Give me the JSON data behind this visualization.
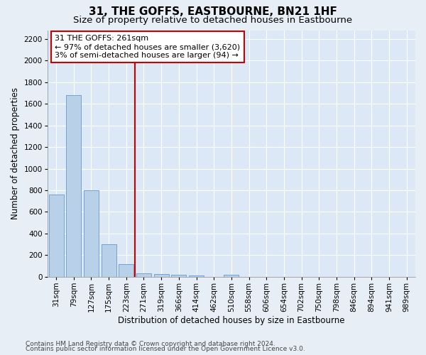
{
  "title": "31, THE GOFFS, EASTBOURNE, BN21 1HF",
  "subtitle": "Size of property relative to detached houses in Eastbourne",
  "xlabel": "Distribution of detached houses by size in Eastbourne",
  "ylabel": "Number of detached properties",
  "footnote1": "Contains HM Land Registry data © Crown copyright and database right 2024.",
  "footnote2": "Contains public sector information licensed under the Open Government Licence v3.0.",
  "bar_labels": [
    "31sqm",
    "79sqm",
    "127sqm",
    "175sqm",
    "223sqm",
    "271sqm",
    "319sqm",
    "366sqm",
    "414sqm",
    "462sqm",
    "510sqm",
    "558sqm",
    "606sqm",
    "654sqm",
    "702sqm",
    "750sqm",
    "798sqm",
    "846sqm",
    "894sqm",
    "941sqm",
    "989sqm"
  ],
  "bar_values": [
    760,
    1680,
    800,
    300,
    115,
    35,
    25,
    20,
    15,
    0,
    20,
    0,
    0,
    0,
    0,
    0,
    0,
    0,
    0,
    0,
    0
  ],
  "bar_color": "#b8d0e8",
  "bar_edge_color": "#6699cc",
  "vline_x": 4.5,
  "vline_color": "#cc0000",
  "annotation_line1": "31 THE GOFFS: 261sqm",
  "annotation_line2": "← 97% of detached houses are smaller (3,620)",
  "annotation_line3": "3% of semi-detached houses are larger (94) →",
  "annotation_box_edgecolor": "#cc0000",
  "annotation_box_facecolor": "#ffffff",
  "ylim": [
    0,
    2280
  ],
  "yticks": [
    0,
    200,
    400,
    600,
    800,
    1000,
    1200,
    1400,
    1600,
    1800,
    2000,
    2200
  ],
  "background_color": "#e8eef5",
  "plot_bg_color": "#dce8f5",
  "grid_color": "#ffffff",
  "title_fontsize": 11,
  "subtitle_fontsize": 9.5,
  "axis_label_fontsize": 8.5,
  "tick_fontsize": 7.5,
  "annotation_fontsize": 8,
  "footnote_fontsize": 6.5
}
